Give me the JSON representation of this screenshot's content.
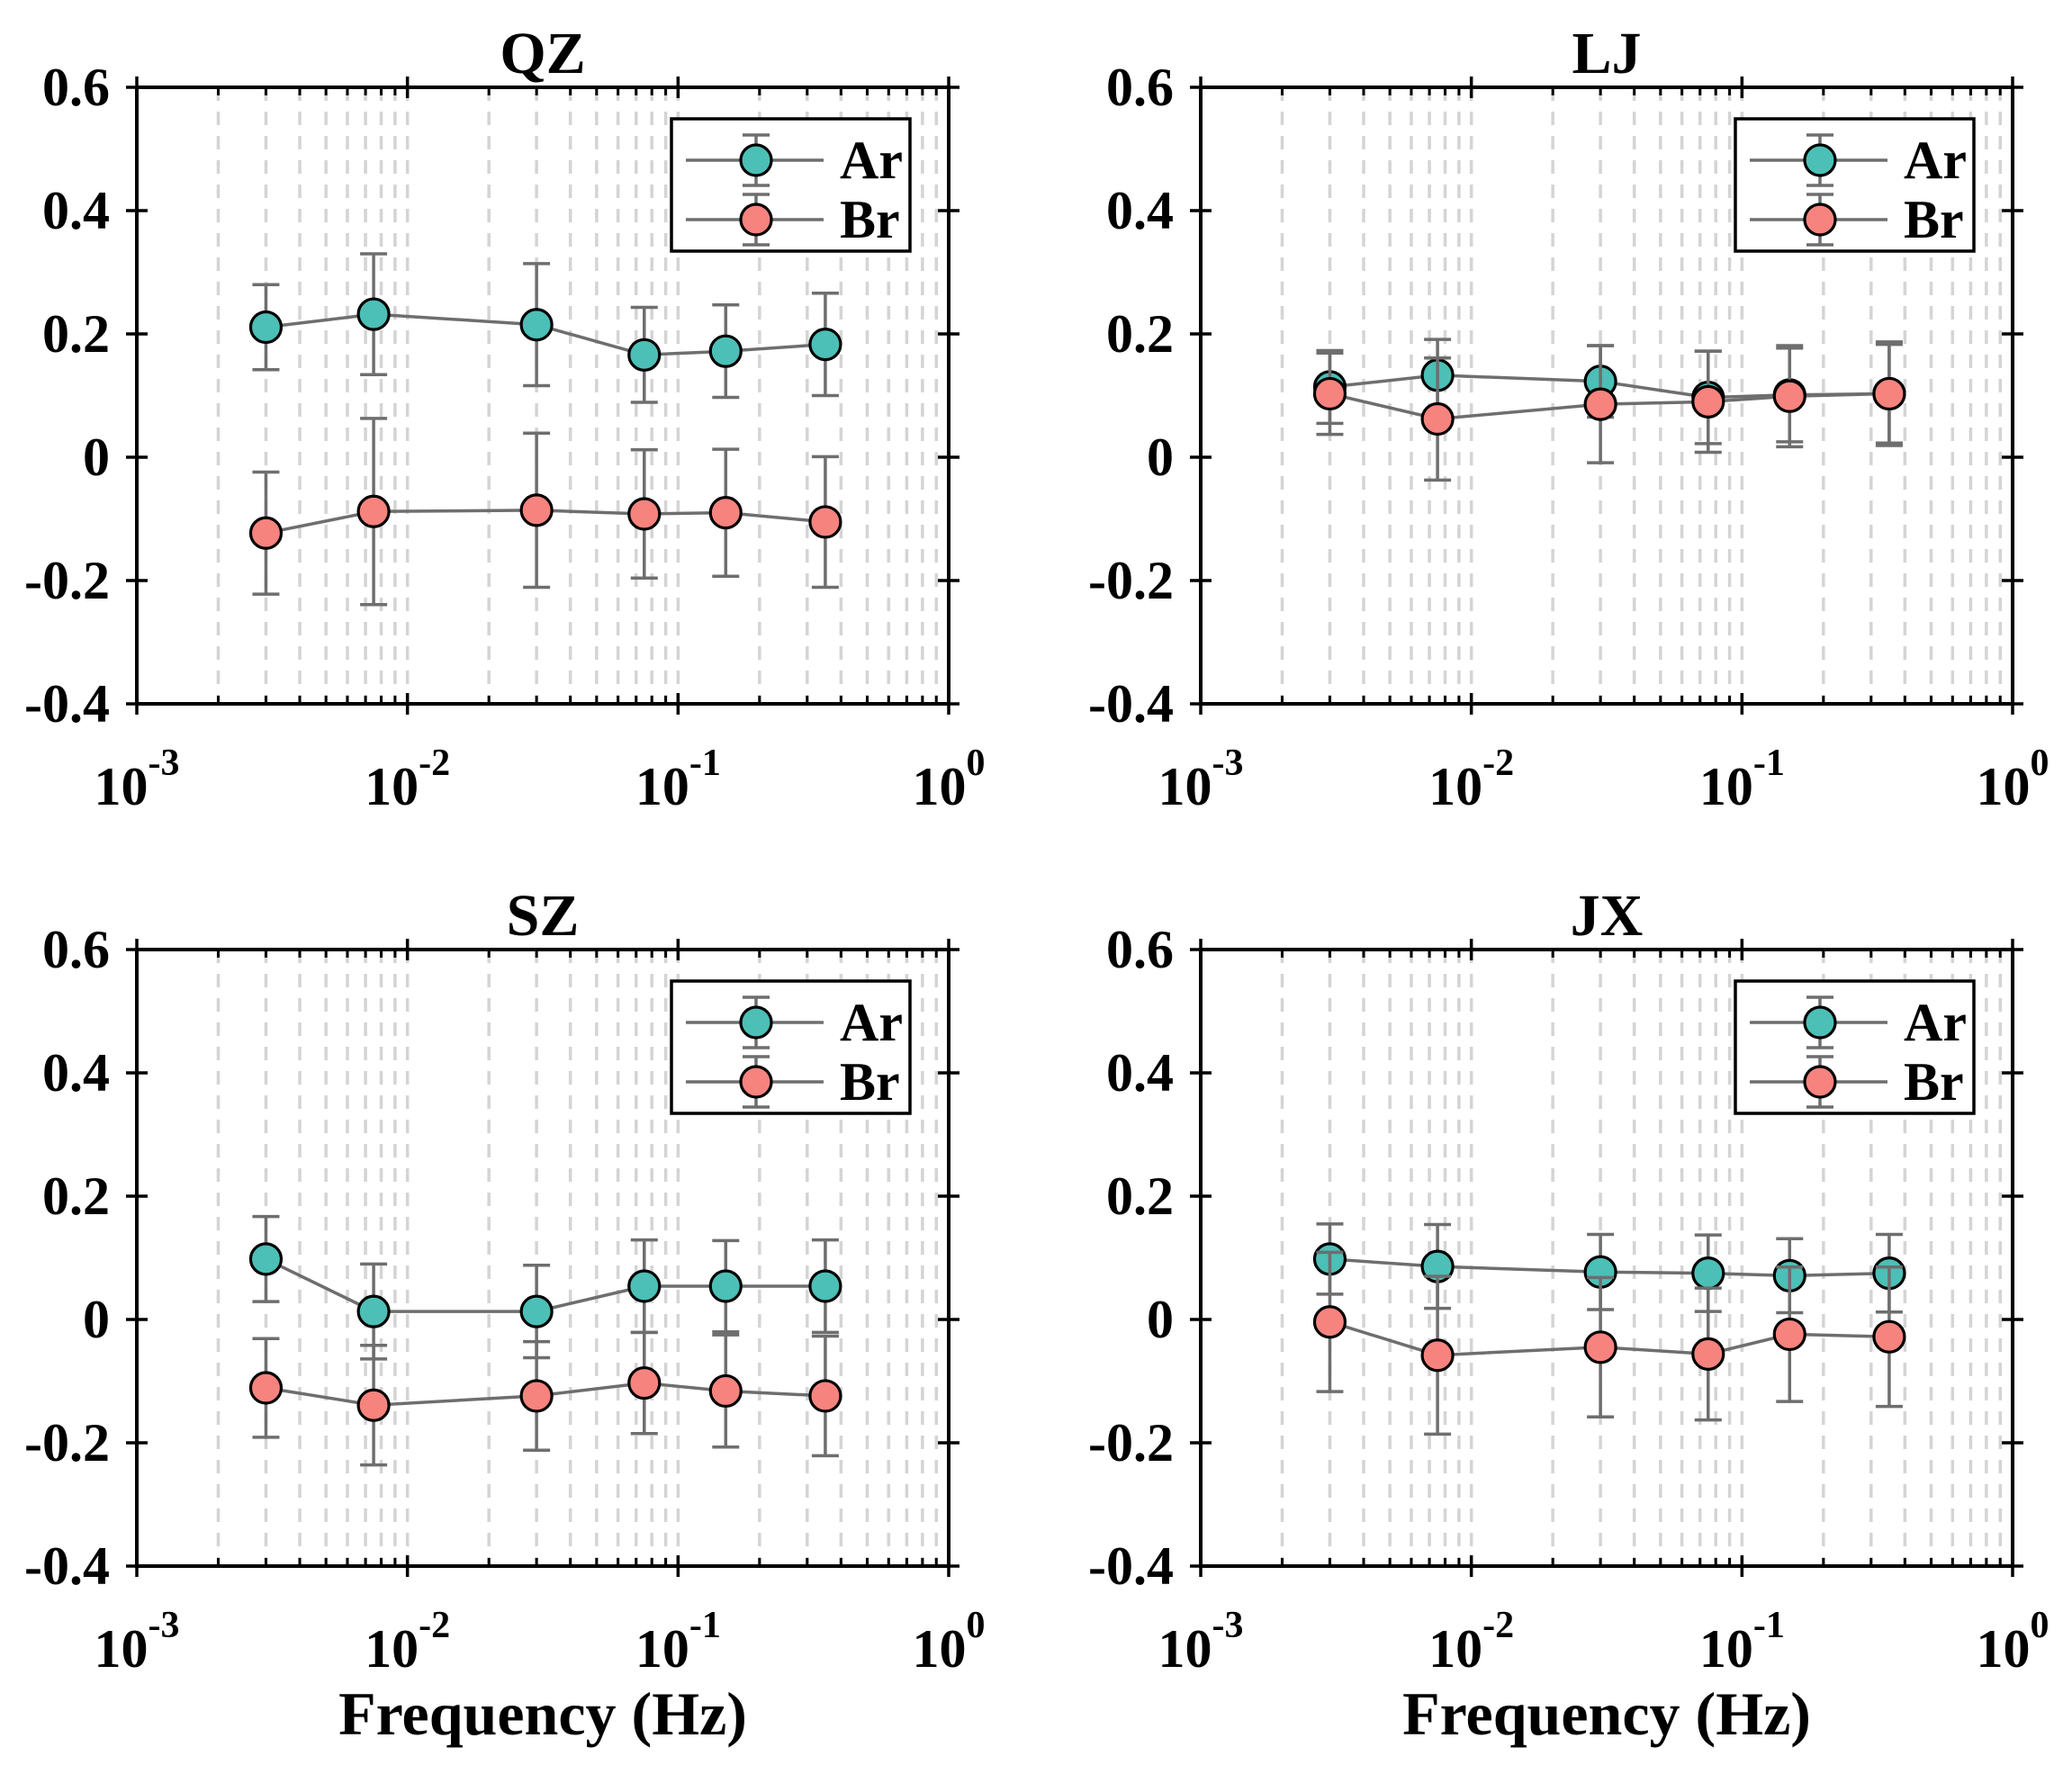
{
  "colors": {
    "line": "#6E6E6E",
    "errorbar": "#6E6E6E",
    "marker_edge": "#000000",
    "grid": "#D4D4D4",
    "axes": "#000000"
  },
  "chart_data": [
    {
      "type": "line",
      "title": "QZ",
      "xlabel": "",
      "ylabel": "",
      "xlog": true,
      "xlim": [
        0.001,
        1
      ],
      "ylim": [
        -0.4,
        0.6
      ],
      "xticks": [
        0.001,
        0.01,
        0.1,
        1
      ],
      "xtick_labels": [
        {
          "base": "10",
          "exp": "-3"
        },
        {
          "base": "10",
          "exp": "-2"
        },
        {
          "base": "10",
          "exp": "-1"
        },
        {
          "base": "10",
          "exp": "0"
        }
      ],
      "yticks": [
        -0.4,
        -0.2,
        0,
        0.2,
        0.4,
        0.6
      ],
      "ytick_labels": [
        "-0.4",
        "-0.2",
        "0",
        "0.2",
        "0.4",
        "0.6"
      ],
      "grid": {
        "x": true,
        "y": false
      },
      "legend": "top-right",
      "x": [
        0.003,
        0.0075,
        0.03,
        0.075,
        0.15,
        0.35
      ],
      "series": [
        {
          "name": "Ar",
          "color": "#4CBFB6",
          "values": [
            0.211,
            0.232,
            0.215,
            0.166,
            0.172,
            0.183
          ],
          "errors": [
            0.069,
            0.098,
            0.099,
            0.077,
            0.075,
            0.083
          ]
        },
        {
          "name": "Br",
          "color": "#F6837E",
          "values": [
            -0.123,
            -0.088,
            -0.086,
            -0.092,
            -0.09,
            -0.105
          ],
          "errors": [
            0.099,
            0.151,
            0.125,
            0.104,
            0.103,
            0.106
          ]
        }
      ]
    },
    {
      "type": "line",
      "title": "LJ",
      "xlabel": "",
      "ylabel": "",
      "xlog": true,
      "xlim": [
        0.001,
        1
      ],
      "ylim": [
        -0.4,
        0.6
      ],
      "xticks": [
        0.001,
        0.01,
        0.1,
        1
      ],
      "xtick_labels": [
        {
          "base": "10",
          "exp": "-3"
        },
        {
          "base": "10",
          "exp": "-2"
        },
        {
          "base": "10",
          "exp": "-1"
        },
        {
          "base": "10",
          "exp": "0"
        }
      ],
      "yticks": [
        -0.4,
        -0.2,
        0,
        0.2,
        0.4,
        0.6
      ],
      "ytick_labels": [
        "-0.4",
        "-0.2",
        "0",
        "0.2",
        "0.4",
        "0.6"
      ],
      "grid": {
        "x": true,
        "y": false
      },
      "legend": "top-right",
      "x": [
        0.003,
        0.0075,
        0.03,
        0.075,
        0.15,
        0.35
      ],
      "series": [
        {
          "name": "Ar",
          "color": "#4CBFB6",
          "values": [
            0.114,
            0.133,
            0.123,
            0.097,
            0.101,
            0.103
          ],
          "errors": [
            0.059,
            0.058,
            0.058,
            0.075,
            0.076,
            0.08
          ]
        },
        {
          "name": "Br",
          "color": "#F6837E",
          "values": [
            0.103,
            0.062,
            0.086,
            0.09,
            0.099,
            0.103
          ],
          "errors": [
            0.066,
            0.099,
            0.095,
            0.082,
            0.082,
            0.084
          ]
        }
      ]
    },
    {
      "type": "line",
      "title": "SZ",
      "xlabel": "Frequency (Hz)",
      "ylabel": "",
      "xlog": true,
      "xlim": [
        0.001,
        1
      ],
      "ylim": [
        -0.4,
        0.6
      ],
      "xticks": [
        0.001,
        0.01,
        0.1,
        1
      ],
      "xtick_labels": [
        {
          "base": "10",
          "exp": "-3"
        },
        {
          "base": "10",
          "exp": "-2"
        },
        {
          "base": "10",
          "exp": "-1"
        },
        {
          "base": "10",
          "exp": "0"
        }
      ],
      "yticks": [
        -0.4,
        -0.2,
        0,
        0.2,
        0.4,
        0.6
      ],
      "ytick_labels": [
        "-0.4",
        "-0.2",
        "0",
        "0.2",
        "0.4",
        "0.6"
      ],
      "grid": {
        "x": true,
        "y": false
      },
      "legend": "top-right",
      "x": [
        0.003,
        0.0075,
        0.03,
        0.075,
        0.15,
        0.35
      ],
      "series": [
        {
          "name": "Ar",
          "color": "#4CBFB6",
          "values": [
            0.098,
            0.013,
            0.013,
            0.054,
            0.054,
            0.054
          ],
          "errors": [
            0.069,
            0.077,
            0.075,
            0.075,
            0.074,
            0.075
          ]
        },
        {
          "name": "Br",
          "color": "#F6837E",
          "values": [
            -0.111,
            -0.139,
            -0.124,
            -0.103,
            -0.116,
            -0.124
          ],
          "errors": [
            0.08,
            0.097,
            0.088,
            0.082,
            0.091,
            0.097
          ]
        }
      ]
    },
    {
      "type": "line",
      "title": "JX",
      "xlabel": "Frequency (Hz)",
      "ylabel": "",
      "xlog": true,
      "xlim": [
        0.001,
        1
      ],
      "ylim": [
        -0.4,
        0.6
      ],
      "xticks": [
        0.001,
        0.01,
        0.1,
        1
      ],
      "xtick_labels": [
        {
          "base": "10",
          "exp": "-3"
        },
        {
          "base": "10",
          "exp": "-2"
        },
        {
          "base": "10",
          "exp": "-1"
        },
        {
          "base": "10",
          "exp": "0"
        }
      ],
      "yticks": [
        -0.4,
        -0.2,
        0,
        0.2,
        0.4,
        0.6
      ],
      "ytick_labels": [
        "-0.4",
        "-0.2",
        "0",
        "0.2",
        "0.4",
        "0.6"
      ],
      "grid": {
        "x": true,
        "y": false
      },
      "legend": "top-right",
      "x": [
        0.003,
        0.0075,
        0.03,
        0.075,
        0.15,
        0.35
      ],
      "series": [
        {
          "name": "Ar",
          "color": "#4CBFB6",
          "values": [
            0.098,
            0.086,
            0.077,
            0.075,
            0.071,
            0.075
          ],
          "errors": [
            0.057,
            0.068,
            0.061,
            0.062,
            0.06,
            0.063
          ]
        },
        {
          "name": "Br",
          "color": "#F6837E",
          "values": [
            -0.004,
            -0.058,
            -0.045,
            -0.056,
            -0.024,
            -0.028
          ],
          "errors": [
            0.113,
            0.128,
            0.113,
            0.107,
            0.109,
            0.113
          ]
        }
      ]
    }
  ]
}
